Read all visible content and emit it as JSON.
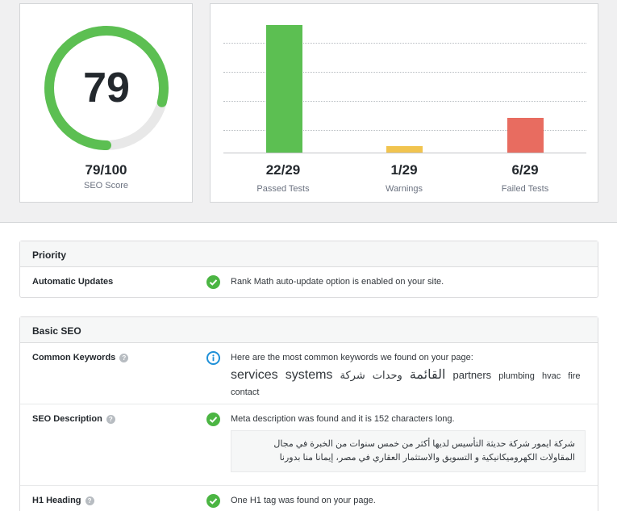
{
  "score": {
    "value": 79,
    "max": 100,
    "display": "79",
    "fraction": "79/100",
    "label": "SEO Score",
    "ring_color": "#5cbf52",
    "track_color": "#e8e8e8"
  },
  "tests": {
    "total": 29,
    "passed": {
      "value": 22,
      "display": "22/29",
      "label": "Passed Tests",
      "color": "#5cbf52"
    },
    "warnings": {
      "value": 1,
      "display": "1/29",
      "label": "Warnings",
      "color": "#f1c44f"
    },
    "failed": {
      "value": 6,
      "display": "6/29",
      "label": "Failed Tests",
      "color": "#e86c60"
    }
  },
  "sections": {
    "priority": {
      "title": "Priority",
      "rows": [
        {
          "label": "Automatic Updates",
          "status": "ok",
          "text": "Rank Math auto-update option is enabled on your site."
        }
      ]
    },
    "basic": {
      "title": "Basic SEO",
      "rows": [
        {
          "label": "Common Keywords",
          "status": "info",
          "text": "Here are the most common keywords we found on your page:",
          "keywords": [
            "services",
            "systems",
            "القائمة",
            "وحدات",
            "شركة",
            "partners",
            "plumbing",
            "hvac",
            "fire",
            "contact"
          ]
        },
        {
          "label": "SEO Description",
          "status": "ok",
          "text": "Meta description was found and it is 152 characters long.",
          "description": "شركة ايمور شركة حديثة التأسيس لديها أكثر من خمس سنوات من الخبرة في مجال المقاولات الكهروميكانيكية و التسويق والاستثمار العقاري في مصر، إيمانا منا بدورنا"
        },
        {
          "label": "H1 Heading",
          "status": "ok",
          "text": "One H1 tag was found on your page."
        }
      ]
    }
  }
}
